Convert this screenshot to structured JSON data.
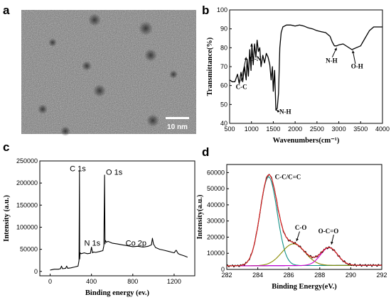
{
  "panels": {
    "a": {
      "letter": "a",
      "scale_bar_label": "10 nm"
    },
    "b": {
      "letter": "b"
    },
    "c": {
      "letter": "c"
    },
    "d": {
      "letter": "d"
    }
  },
  "chart_data": [
    {
      "id": "b",
      "type": "line",
      "xlabel": "Wavenumbers(cm⁻¹)",
      "ylabel": "Transmittance(%)",
      "xlim": [
        500,
        4000
      ],
      "ylim": [
        40,
        100
      ],
      "xticks": [
        500,
        1000,
        1500,
        2000,
        2500,
        3000,
        3500,
        4000
      ],
      "yticks": [
        40,
        50,
        60,
        70,
        80,
        90,
        100
      ],
      "series": [
        {
          "color": "#000000",
          "x": [
            500,
            560,
            620,
            680,
            720,
            760,
            800,
            840,
            880,
            900,
            930,
            960,
            990,
            1010,
            1040,
            1070,
            1100,
            1130,
            1160,
            1190,
            1220,
            1260,
            1300,
            1340,
            1380,
            1420,
            1450,
            1480,
            1500,
            1530,
            1560,
            1590,
            1620,
            1650,
            1680,
            1720,
            1800,
            1900,
            2000,
            2100,
            2200,
            2300,
            2400,
            2500,
            2600,
            2700,
            2800,
            2850,
            2900,
            2950,
            3000,
            3100,
            3200,
            3300,
            3400,
            3500,
            3600,
            3700,
            3800,
            3900,
            4000
          ],
          "y": [
            63,
            62,
            62,
            66,
            61,
            67,
            62,
            70,
            63,
            74,
            65,
            79,
            68,
            82,
            71,
            82,
            75,
            84,
            78,
            80,
            70,
            76,
            72,
            77,
            75,
            71,
            63,
            70,
            57,
            68,
            47,
            48,
            56,
            80,
            88,
            91,
            92,
            92,
            91.5,
            92,
            91.5,
            90.5,
            90,
            89,
            88.5,
            88,
            86,
            83,
            81,
            81,
            81.5,
            82,
            80.5,
            79,
            80,
            81,
            85,
            89,
            91,
            91,
            91
          ]
        }
      ],
      "annotations": [
        "C-C",
        "C-N",
        "N-H",
        "N-H",
        "O-H"
      ]
    },
    {
      "id": "c",
      "type": "line",
      "xlabel": "Binding energy (ev.)",
      "ylabel": "Intensity (a.u.)",
      "xlim": [
        -100,
        1400
      ],
      "ylim": [
        -10000,
        250000
      ],
      "xticks": [
        0,
        400,
        800,
        1200
      ],
      "yticks": [
        0,
        50000,
        100000,
        150000,
        200000,
        250000
      ],
      "series": [
        {
          "color": "#000000",
          "x": [
            0,
            40,
            80,
            100,
            110,
            120,
            150,
            160,
            170,
            200,
            240,
            270,
            280,
            284,
            286,
            290,
            300,
            330,
            360,
            390,
            400,
            410,
            420,
            440,
            480,
            510,
            520,
            527,
            531,
            535,
            545,
            560,
            600,
            650,
            700,
            750,
            800,
            850,
            900,
            950,
            980,
            990,
            1000,
            1020,
            1060,
            1100,
            1150,
            1200,
            1220,
            1240,
            1260,
            1300,
            1330
          ],
          "y": [
            3000,
            5000,
            5000,
            6000,
            12000,
            6000,
            7000,
            12000,
            7000,
            8000,
            10000,
            12000,
            25000,
            228000,
            28000,
            42000,
            40000,
            42000,
            40000,
            41000,
            55000,
            42000,
            44000,
            43000,
            45000,
            47000,
            58000,
            218000,
            62000,
            70000,
            66000,
            68000,
            64000,
            62000,
            60000,
            58000,
            56000,
            57000,
            55000,
            57000,
            60000,
            75000,
            62000,
            54000,
            50000,
            48000,
            45000,
            42000,
            48000,
            40000,
            38000,
            35000,
            32000
          ]
        }
      ],
      "annotations": [
        "C 1s",
        "O 1s",
        "N 1s",
        "Co 2p"
      ]
    },
    {
      "id": "d",
      "type": "line",
      "xlabel": "Binding Energy(eV.)",
      "ylabel": "Intensity(a.u.)",
      "xlim": [
        282,
        292
      ],
      "ylim": [
        0,
        65000
      ],
      "xticks": [
        282,
        284,
        286,
        288,
        290,
        292
      ],
      "yticks": [
        0,
        10000,
        20000,
        30000,
        40000,
        50000,
        60000
      ],
      "components": [
        {
          "type": "gauss",
          "label": "C-C/C=C",
          "center": 284.7,
          "amplitude": 55000,
          "sigma": 0.55,
          "color": "#0f8f86"
        },
        {
          "type": "gauss",
          "label": "C-O",
          "center": 286.3,
          "amplitude": 13500,
          "sigma": 0.75,
          "color": "#8a8a00"
        },
        {
          "type": "gauss",
          "label": "O-C=O",
          "center": 288.6,
          "amplitude": 11000,
          "sigma": 0.55,
          "color": "#cc00cc"
        }
      ],
      "background": {
        "start": 2200,
        "end": 2600,
        "color": "#3333cc"
      },
      "raw_color": "#000000",
      "fit_color": "#dd2222",
      "annotations": [
        "C-C/C=C",
        "C-O",
        "O-C=O"
      ]
    }
  ]
}
